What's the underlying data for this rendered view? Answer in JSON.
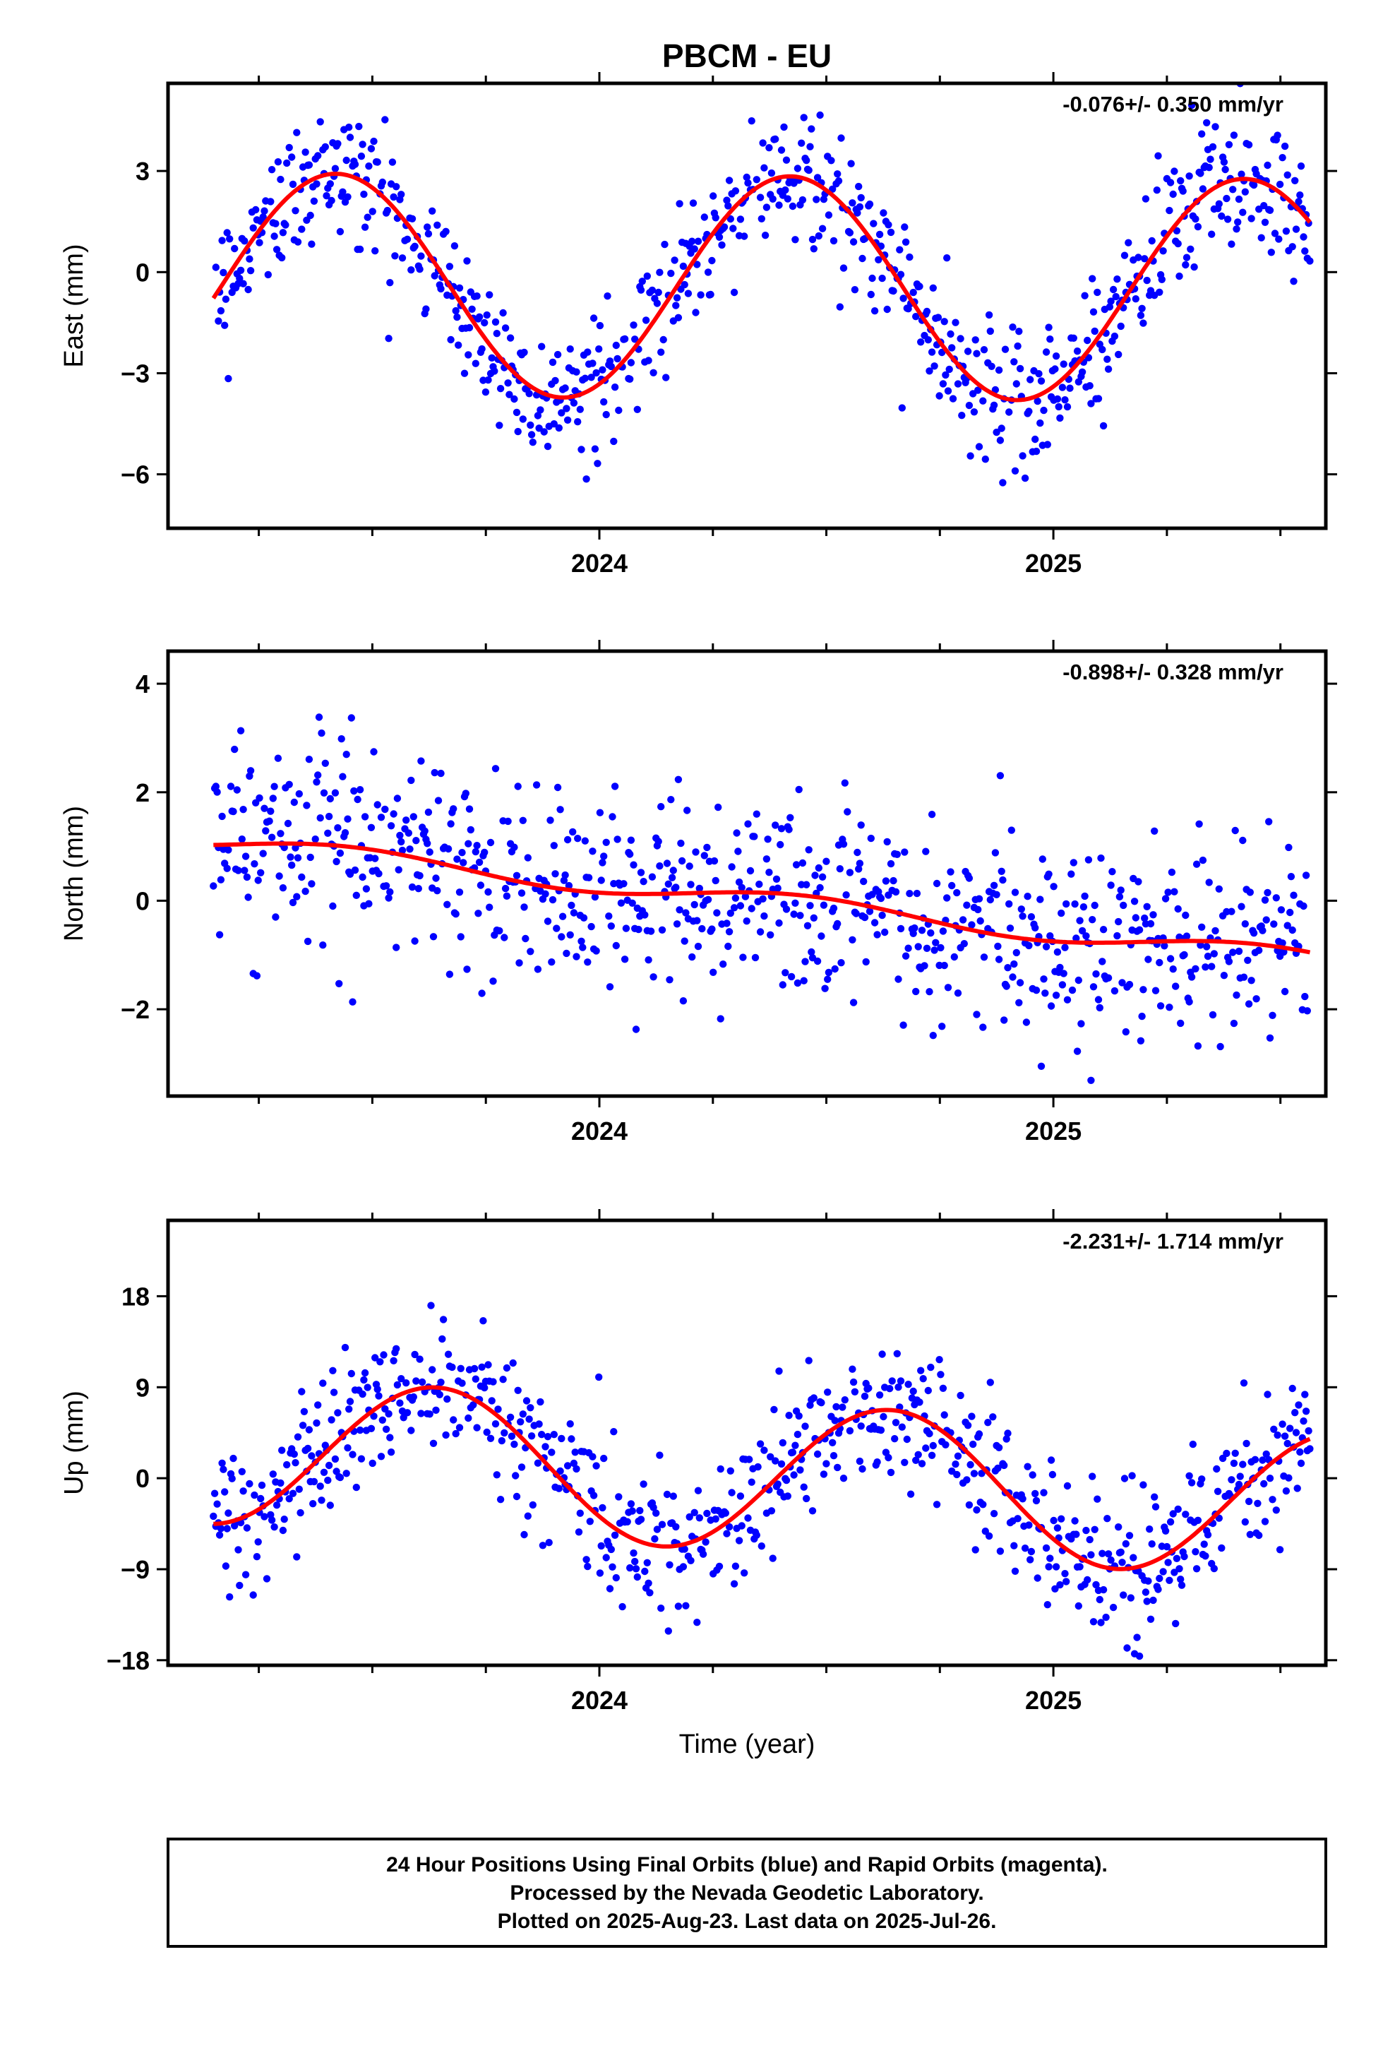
{
  "figure_title": "PBCM - EU",
  "footer": {
    "line1": "24 Hour Positions Using Final Orbits (blue) and Rapid Orbits (magenta).",
    "line2": "Processed by the Nevada Geodetic Laboratory.",
    "line3": "Plotted on 2025-Aug-23. Last data on 2025-Jul-26."
  },
  "colors": {
    "observations": "#0000ff",
    "model_fit": "#ff0000",
    "frame": "#000000"
  },
  "chart_data": [
    {
      "type": "scatter",
      "ylabel": "East (mm)",
      "xlabel": "",
      "rate_label": "-0.076+/- 0.350 mm/yr",
      "xlim": [
        2023.05,
        2025.6
      ],
      "ylim": [
        -7.6,
        5.6
      ],
      "xticks": [
        2024,
        2025
      ],
      "xtick_labels": [
        "2024",
        "2025"
      ],
      "xminor_step": 0.25,
      "yticks": [
        -6,
        -3,
        0,
        3
      ],
      "ytick_labels": [
        "−6",
        "−3",
        "0",
        "3"
      ],
      "model": {
        "offset": -0.45,
        "amplitude": 3.3,
        "peak_phase": 0.42,
        "period_years": 1.0,
        "trend_mm_per_yr": -0.076,
        "ref_year": 2024.3
      },
      "scatter_sigma": 1.0,
      "grid": false
    },
    {
      "type": "scatter",
      "ylabel": "North (mm)",
      "xlabel": "",
      "rate_label": "-0.898+/- 0.328 mm/yr",
      "xlim": [
        2023.05,
        2025.6
      ],
      "ylim": [
        -3.6,
        4.6
      ],
      "xticks": [
        2024,
        2025
      ],
      "xtick_labels": [
        "2024",
        "2025"
      ],
      "xminor_step": 0.25,
      "yticks": [
        -2,
        0,
        2,
        4
      ],
      "ytick_labels": [
        "−2",
        "0",
        "2",
        "4"
      ],
      "model": {
        "offset": 0.05,
        "amplitude": 0.18,
        "peak_phase": 0.45,
        "period_years": 1.0,
        "trend_mm_per_yr": -0.898,
        "ref_year": 2024.3
      },
      "scatter_sigma": 0.95,
      "grid": false
    },
    {
      "type": "scatter",
      "ylabel": "Up (mm)",
      "xlabel": "Time (year)",
      "rate_label": "-2.231+/- 1.714 mm/yr",
      "xlim": [
        2023.05,
        2025.6
      ],
      "ylim": [
        -18.5,
        25.5
      ],
      "xticks": [
        2024,
        2025
      ],
      "xtick_labels": [
        "2024",
        "2025"
      ],
      "xminor_step": 0.25,
      "yticks": [
        -18,
        -9,
        0,
        9,
        18
      ],
      "ytick_labels": [
        "−18",
        "−9",
        "0",
        "9",
        "18"
      ],
      "model": {
        "offset": 0.2,
        "amplitude": 7.3,
        "peak_phase": 0.64,
        "period_years": 1.0,
        "trend_mm_per_yr": -2.231,
        "ref_year": 2024.3
      },
      "scatter_sigma": 3.6,
      "grid": false
    }
  ]
}
